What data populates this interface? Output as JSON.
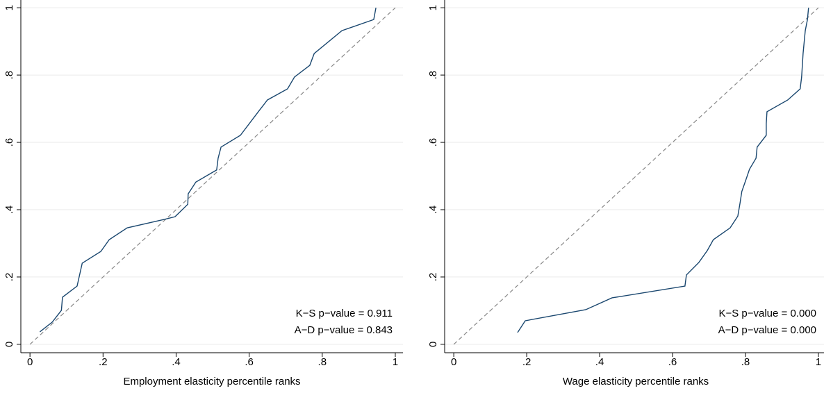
{
  "chart_data": [
    {
      "type": "line",
      "xlabel": "Employment elasticity percentile ranks",
      "x": [
        0.027,
        0.061,
        0.086,
        0.089,
        0.129,
        0.143,
        0.194,
        0.217,
        0.266,
        0.367,
        0.397,
        0.432,
        0.433,
        0.454,
        0.511,
        0.515,
        0.523,
        0.576,
        0.625,
        0.65,
        0.705,
        0.724,
        0.766,
        0.778,
        0.854,
        0.941,
        0.947
      ],
      "series": [
        {
          "color": "#1a476f",
          "values": [
            0.037,
            0.066,
            0.101,
            0.14,
            0.173,
            0.241,
            0.276,
            0.311,
            0.346,
            0.371,
            0.379,
            0.416,
            0.447,
            0.482,
            0.518,
            0.553,
            0.586,
            0.621,
            0.691,
            0.726,
            0.759,
            0.794,
            0.829,
            0.864,
            0.932,
            0.965,
            1.0
          ]
        }
      ],
      "xlim": [
        -0.025,
        1.021
      ],
      "ylim": [
        -0.025,
        1.023
      ],
      "xticks": [
        0,
        {
          "value": 0.2,
          "label": ".2"
        },
        {
          "value": 0.4,
          "label": ".4"
        },
        {
          "value": 0.6,
          "label": ".6"
        },
        {
          "value": 0.8,
          "label": ".8"
        },
        1
      ],
      "yticks": [
        0,
        {
          "value": 0.2,
          "label": ".2"
        },
        {
          "value": 0.4,
          "label": ".4"
        },
        {
          "value": 0.6,
          "label": ".6"
        },
        {
          "value": 0.8,
          "label": ".8"
        },
        1
      ],
      "grid": true,
      "reference_line": true,
      "annotations": [
        "K−S p−value = 0.911",
        "A−D p−value = 0.843"
      ]
    },
    {
      "type": "line",
      "xlabel": "Wage elasticity percentile ranks",
      "x": [
        0.175,
        0.196,
        0.362,
        0.434,
        0.634,
        0.638,
        0.672,
        0.695,
        0.712,
        0.758,
        0.779,
        0.785,
        0.79,
        0.8,
        0.811,
        0.829,
        0.832,
        0.857,
        0.857,
        0.859,
        0.916,
        0.95,
        0.954,
        0.956,
        0.958,
        0.964,
        0.97,
        0.973
      ],
      "series": [
        {
          "color": "#1a476f",
          "values": [
            0.035,
            0.07,
            0.103,
            0.138,
            0.173,
            0.206,
            0.243,
            0.278,
            0.311,
            0.346,
            0.381,
            0.419,
            0.454,
            0.485,
            0.52,
            0.553,
            0.586,
            0.621,
            0.656,
            0.691,
            0.726,
            0.759,
            0.794,
            0.829,
            0.864,
            0.932,
            0.965,
            1.0
          ]
        }
      ],
      "xlim": [
        -0.025,
        1.023
      ],
      "ylim": [
        -0.025,
        1.023
      ],
      "xticks": [
        0,
        {
          "value": 0.2,
          "label": ".2"
        },
        {
          "value": 0.4,
          "label": ".4"
        },
        {
          "value": 0.6,
          "label": ".6"
        },
        {
          "value": 0.8,
          "label": ".8"
        },
        1
      ],
      "yticks": [
        0,
        {
          "value": 0.2,
          "label": ".2"
        },
        {
          "value": 0.4,
          "label": ".4"
        },
        {
          "value": 0.6,
          "label": ".6"
        },
        {
          "value": 0.8,
          "label": ".8"
        },
        1
      ],
      "grid": true,
      "reference_line": true,
      "annotations": [
        "K−S p−value = 0.000",
        "A−D p−value = 0.000"
      ]
    }
  ]
}
